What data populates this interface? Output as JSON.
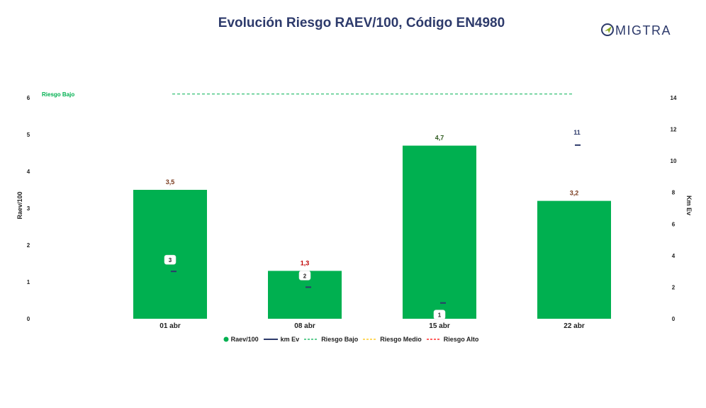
{
  "title": "Evolución Riesgo RAEV/100, Código EN4980",
  "logo": {
    "text": "MIGTRA",
    "icon": "compass-plane-icon",
    "color": "#2d3a6b",
    "accent": "#8aa81e"
  },
  "chart_data": {
    "type": "bar",
    "categories": [
      "01 abr",
      "08 abr",
      "15 abr",
      "22 abr"
    ],
    "series": [
      {
        "name": "Raev/100",
        "kind": "bar",
        "axis": "left",
        "color": "#00b050",
        "values": [
          3.5,
          1.3,
          4.7,
          3.2
        ],
        "labels": [
          "3,5",
          "1,3",
          "4,7",
          "3,2"
        ],
        "label_colors": [
          "#7a3b1e",
          "#c00000",
          "#2e5a1e",
          "#7a3b1e"
        ]
      },
      {
        "name": "km Ev",
        "kind": "marker",
        "axis": "right",
        "color": "#2d3a6b",
        "values": [
          3,
          2,
          1,
          11
        ],
        "labels": [
          "3",
          "2",
          "1",
          "11"
        ]
      },
      {
        "name": "Riesgo Bajo",
        "kind": "threshold",
        "color": "#00b050",
        "value": 6.1
      },
      {
        "name": "Riesgo Medio",
        "kind": "threshold",
        "color": "#ffc000",
        "value": null
      },
      {
        "name": "Riesgo Alto",
        "kind": "threshold",
        "color": "#ff0000",
        "value": null
      }
    ],
    "threshold_label": "Riesgo Bajo",
    "ylabel": "Raev/100",
    "y2label": "Km Ev",
    "ylim": [
      0,
      6
    ],
    "y2lim": [
      0,
      14
    ],
    "yticks": [
      0,
      1,
      2,
      3,
      4,
      5,
      6
    ],
    "y2ticks": [
      0,
      2,
      4,
      6,
      8,
      10,
      12,
      14
    ],
    "grid": false,
    "legend": "bottom-center"
  }
}
